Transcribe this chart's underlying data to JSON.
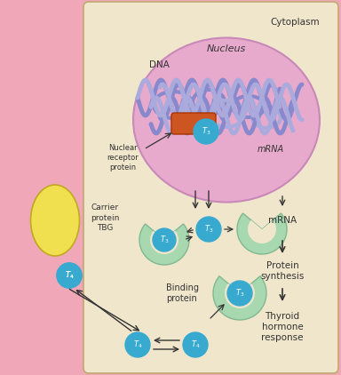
{
  "bg_pink": "#f0a8b8",
  "bg_cream": "#f0e6cc",
  "nucleus_fill": "#e8aacc",
  "nucleus_edge": "#c888b8",
  "dna_color1": "#8888cc",
  "dna_color2": "#aaaadd",
  "t3_color": "#38aad0",
  "t4_color": "#38aad0",
  "carrier_color": "#f0e050",
  "binding_color": "#a8d8b0",
  "binding_edge": "#80b890",
  "receptor_color": "#cc5522",
  "receptor_edge": "#aa3300",
  "arrow_color": "#333333",
  "text_color": "#333333",
  "cream_box_edge": "#c0a870",
  "title": "Cytoplasm",
  "label_nucleus": "Nucleus",
  "label_dna": "DNA",
  "label_mrna_in": "mRNA",
  "label_mrna_out": "mRNA",
  "label_nuclear": "Nuclear\nreceptor\nprotein",
  "label_carrier": "Carrier\nprotein\nTBG",
  "label_binding": "Binding\nprotein",
  "label_protein_synthesis": "Protein\nsynthesis",
  "label_thyroid": "Thyroid\nhormone\nresponse"
}
